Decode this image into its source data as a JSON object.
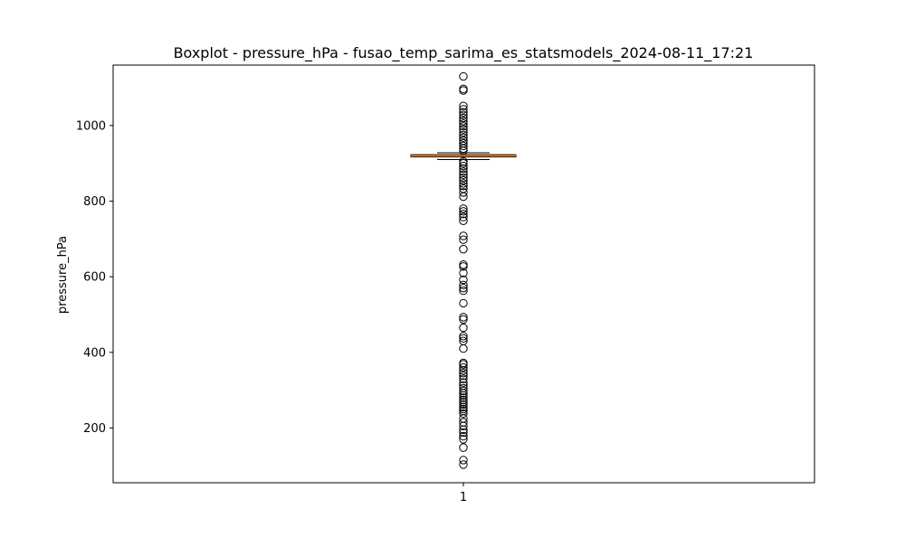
{
  "chart_data": {
    "type": "boxplot",
    "title": "Boxplot - pressure_hPa - fusao_temp_sarima_es_statsmodels_2024-08-11_17:21",
    "xlabel": "",
    "ylabel": "pressure_hPa",
    "categories": [
      "1"
    ],
    "ylim": [
      55,
      1160
    ],
    "yticks": [
      200,
      400,
      600,
      800,
      1000
    ],
    "grid": false,
    "box": {
      "q1": 917,
      "median": 920,
      "q3": 923,
      "whisker_low": 910,
      "whisker_high": 928
    },
    "outliers": [
      1130,
      1097,
      1093,
      1052,
      1043,
      1035,
      1028,
      1020,
      1012,
      1005,
      998,
      990,
      982,
      975,
      968,
      960,
      953,
      946,
      939,
      933,
      905,
      900,
      893,
      886,
      878,
      870,
      862,
      855,
      847,
      840,
      833,
      823,
      812,
      780,
      773,
      766,
      758,
      748,
      708,
      698,
      673,
      632,
      627,
      610,
      592,
      578,
      570,
      563,
      530,
      493,
      487,
      465,
      443,
      437,
      430,
      410,
      372,
      368,
      360,
      352,
      345,
      338,
      330,
      320,
      312,
      305,
      298,
      292,
      286,
      280,
      274,
      268,
      262,
      255,
      250,
      245,
      238,
      225,
      215,
      205,
      195,
      188,
      178,
      170,
      148,
      115,
      103
    ],
    "colors": {
      "median": "#ff7f0e",
      "box": "#000000",
      "outlier": "#000000"
    }
  }
}
